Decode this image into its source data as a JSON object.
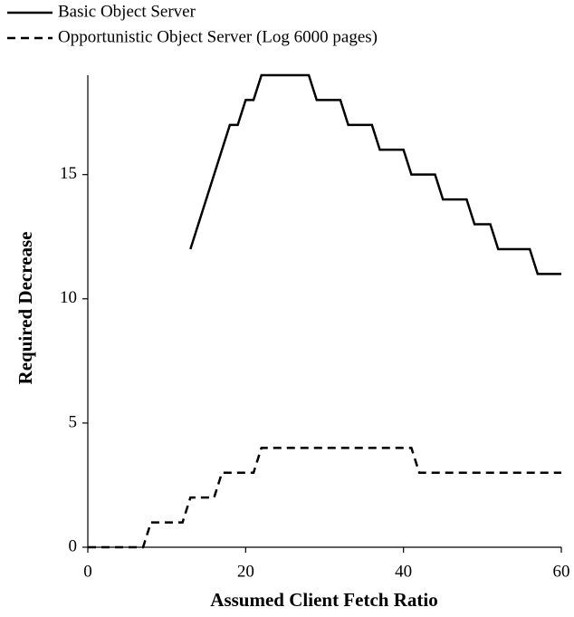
{
  "chart_data": {
    "type": "line",
    "xlabel": "Assumed Client Fetch Ratio",
    "ylabel": "Required Decrease",
    "series": [
      {
        "name": "Basic Object Server",
        "color": "#000000",
        "dash": "solid",
        "x": [
          13,
          18,
          19,
          20,
          21,
          22,
          28,
          29,
          32,
          33,
          36,
          37,
          40,
          41,
          44,
          45,
          48,
          49,
          51,
          52,
          56,
          57,
          60
        ],
        "values": [
          12,
          17,
          17,
          18,
          18,
          19,
          19,
          18,
          18,
          17,
          17,
          16,
          16,
          15,
          15,
          14,
          14,
          13,
          13,
          12,
          12,
          11,
          11
        ]
      },
      {
        "name": "Opportunistic Object Server (Log 6000 pages)",
        "color": "#000000",
        "dash": "dashed",
        "x": [
          0,
          7,
          8,
          12,
          13,
          16,
          17,
          21,
          22,
          41,
          42,
          60
        ],
        "values": [
          0,
          0,
          1,
          1,
          2,
          2,
          3,
          3,
          4,
          4,
          3,
          3
        ]
      }
    ],
    "xlim": [
      0,
      60
    ],
    "xticks": [
      0,
      20,
      40,
      60
    ],
    "ylim": [
      0,
      19
    ],
    "yticks": [
      0,
      5,
      10,
      15
    ],
    "grid": false,
    "legend": "top-left"
  }
}
